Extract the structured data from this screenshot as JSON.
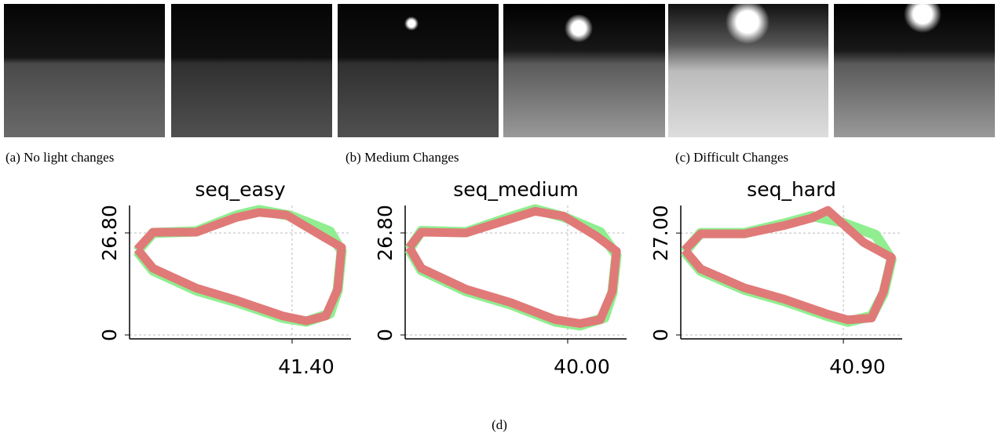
{
  "captions": [
    "(a) No light changes",
    "(b) Medium Changes",
    "(c) Difficult Changes"
  ],
  "figure_label": "(d)",
  "chart_data": [
    {
      "type": "line",
      "title": "seq_easy",
      "xlim": [
        0,
        56.4
      ],
      "ylim": [
        0,
        34
      ],
      "xticks": [
        {
          "value": 41.4,
          "label": "41.40"
        }
      ],
      "yticks": [
        0,
        {
          "value": 26.8,
          "label": "26.80"
        }
      ],
      "grid": true,
      "series": [
        {
          "color": "#90ee90",
          "x": [
            2,
            6,
            17,
            27,
            33,
            41,
            51,
            54,
            53,
            51,
            45,
            39,
            27,
            17,
            6,
            2
          ],
          "values": [
            22.0,
            26.8,
            27.2,
            31.3,
            32.8,
            31.3,
            27.2,
            22.0,
            11.7,
            5.6,
            3.5,
            4.5,
            8.7,
            11.7,
            16.9,
            22.0
          ]
        },
        {
          "color": "#e07a78",
          "x": [
            2,
            6,
            17,
            27,
            33,
            40,
            49,
            54,
            53,
            50,
            45,
            39,
            27,
            17,
            6,
            2
          ],
          "values": [
            22.5,
            27.0,
            27.0,
            30.8,
            32.2,
            31.5,
            26.0,
            23.0,
            12.0,
            5.0,
            3.7,
            5.0,
            9.2,
            12.3,
            17.5,
            22.5
          ]
        }
      ]
    },
    {
      "type": "line",
      "title": "seq_medium",
      "xlim": [
        0,
        54.5
      ],
      "ylim": [
        0,
        34
      ],
      "xticks": [
        {
          "value": 40,
          "label": "40.00"
        }
      ],
      "yticks": [
        0,
        {
          "value": 26.8,
          "label": "26.80"
        }
      ],
      "grid": true,
      "series": [
        {
          "color": "#90ee90",
          "x": [
            1,
            4,
            15,
            26,
            32,
            39,
            48,
            52,
            51,
            49,
            43,
            37,
            26,
            15,
            4,
            1
          ],
          "values": [
            22.5,
            27.3,
            27.0,
            31.0,
            33.0,
            31.0,
            27.0,
            21.0,
            11.0,
            4.5,
            2.5,
            3.5,
            8.0,
            11.5,
            17.0,
            22.5
          ]
        },
        {
          "color": "#e07a78",
          "x": [
            1,
            4,
            15,
            26,
            32,
            39,
            47,
            52,
            51,
            48,
            43,
            37,
            26,
            15,
            4,
            1
          ],
          "values": [
            23.0,
            27.0,
            26.8,
            30.5,
            32.5,
            31.2,
            26.0,
            22.0,
            11.5,
            4.0,
            3.0,
            4.0,
            8.5,
            12.0,
            17.5,
            23.0
          ]
        }
      ]
    },
    {
      "type": "line",
      "title": "seq_hard",
      "xlim": [
        0,
        55.7
      ],
      "ylim": [
        0,
        34.3
      ],
      "xticks": [
        {
          "value": 40.9,
          "label": "40.90"
        }
      ],
      "yticks": [
        0,
        {
          "value": 27,
          "label": "27.00"
        }
      ],
      "grid": true,
      "series": [
        {
          "color": "#90ee90",
          "x": [
            1,
            5,
            16,
            26,
            33,
            40,
            49,
            53,
            51,
            48,
            42,
            37,
            26,
            16,
            5,
            1
          ],
          "values": [
            22.0,
            27.0,
            27.0,
            29.5,
            31.5,
            30.0,
            26.5,
            20.0,
            11.0,
            5.0,
            3.5,
            5.0,
            9.0,
            12.0,
            17.0,
            22.0
          ]
        },
        {
          "color": "#e07a78",
          "x": [
            1,
            5,
            16,
            26,
            33,
            37,
            46,
            53,
            51,
            48,
            42,
            37,
            26,
            16,
            5,
            1
          ],
          "values": [
            22.5,
            26.8,
            26.8,
            29.0,
            31.0,
            33.0,
            24.5,
            20.5,
            11.5,
            4.5,
            4.0,
            5.5,
            9.5,
            12.5,
            17.5,
            22.5
          ]
        }
      ]
    }
  ]
}
